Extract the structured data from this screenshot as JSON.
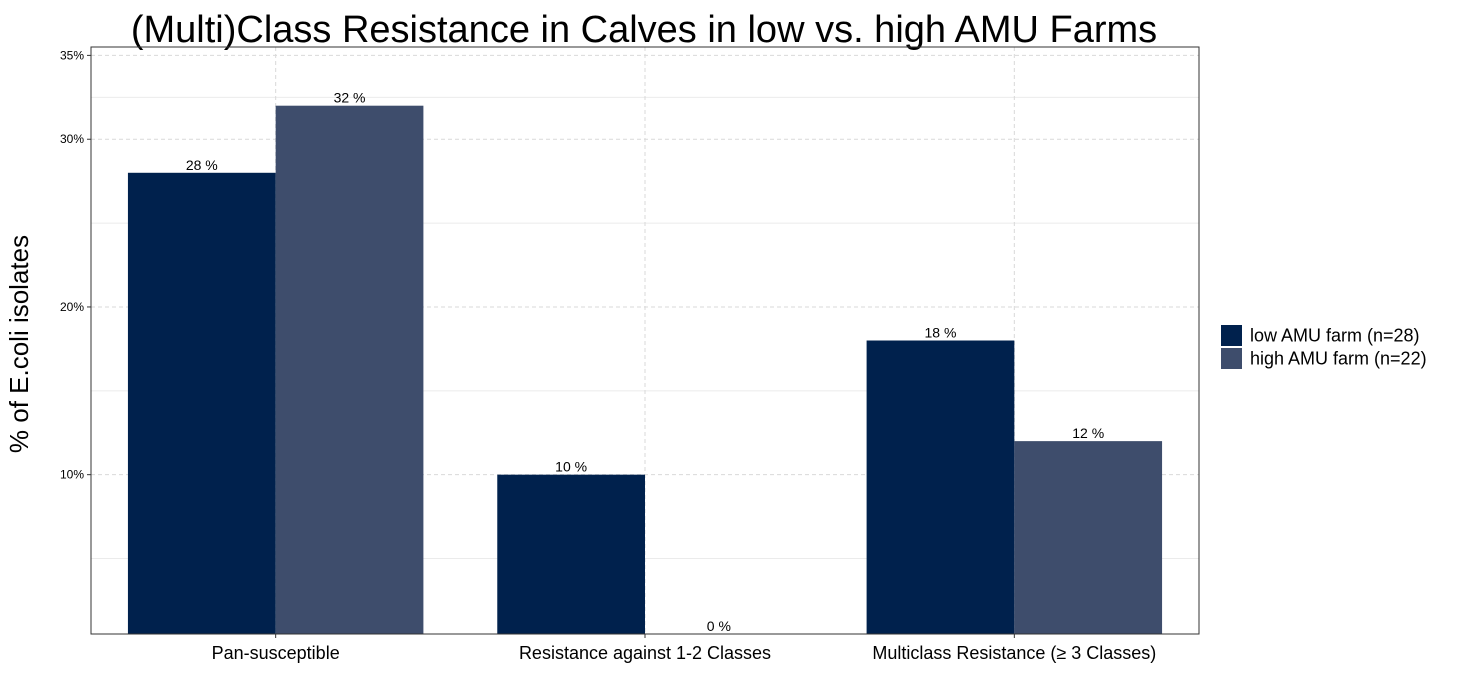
{
  "chart_data": {
    "type": "bar",
    "title": "(Multi)Class Resistance in Calves in low vs. high AMU Farms",
    "xlabel": "",
    "ylabel": "% of E.coli isolates",
    "categories": [
      "Pan-susceptible",
      "Resistance against 1-2 Classes",
      "Multiclass Resistance (≥ 3 Classes)"
    ],
    "series": [
      {
        "name": "low AMU farm (n=28)",
        "values": [
          28,
          10,
          18
        ],
        "labels": [
          "28 %",
          "10 %",
          "18 %"
        ],
        "color": "#00214d"
      },
      {
        "name": "high AMU farm (n=22)",
        "values": [
          32,
          0,
          12
        ],
        "labels": [
          "32 %",
          "0 %",
          "12 %"
        ],
        "color": "#3e4d6c"
      }
    ],
    "yticks": [
      10,
      20,
      30,
      35
    ],
    "ytick_labels": [
      "10%",
      "20%",
      "30%",
      "35%"
    ],
    "ylim": [
      0.5,
      35.5
    ],
    "grid": true,
    "legend_position": "right"
  }
}
